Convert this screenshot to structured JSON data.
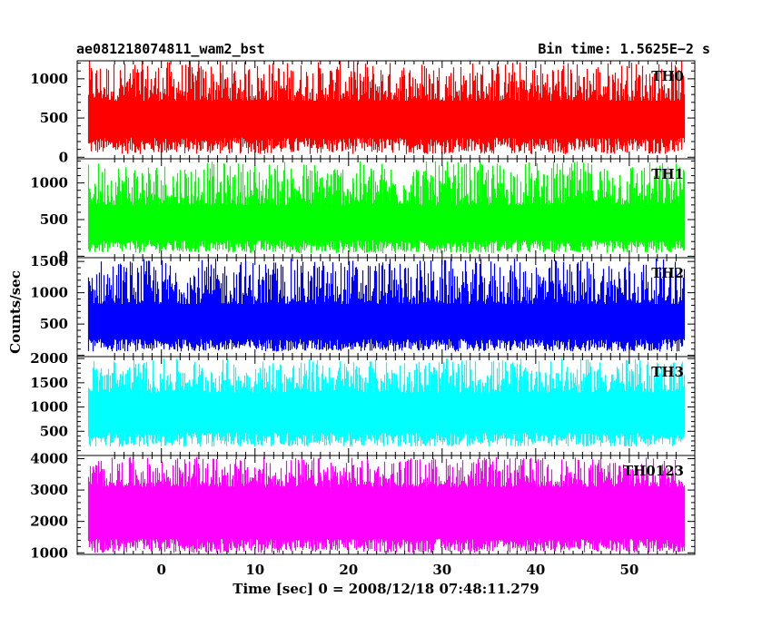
{
  "chart_data": {
    "type": "line",
    "title_left": "ae081218074811_wam2_bst",
    "title_right": "Bin time: 1.5625E−2 s",
    "ylabel": "Counts/sec",
    "xlabel": "Time [sec] 0 = 2008/12/18 07:48:11.279",
    "xlim": [
      -9,
      57
    ],
    "data_x_range": [
      -7.8,
      55.8
    ],
    "x_ticks": [
      0,
      10,
      20,
      30,
      40,
      50
    ],
    "panels": [
      {
        "name": "TH0",
        "color": "#ff0000",
        "ylim": [
          -20,
          1230
        ],
        "y_ticks": [
          0,
          500,
          1000
        ],
        "band_low": [
          40,
          250
        ],
        "band_high": [
          720,
          1230
        ],
        "mean": 500
      },
      {
        "name": "TH1",
        "color": "#00ff00",
        "ylim": [
          -20,
          1330
        ],
        "y_ticks": [
          0,
          500,
          1000
        ],
        "band_low": [
          40,
          220
        ],
        "band_high": [
          700,
          1300
        ],
        "mean": 520
      },
      {
        "name": "TH2",
        "color": "#0000ff",
        "ylim": [
          -20,
          1560
        ],
        "y_ticks": [
          500,
          1000,
          1500
        ],
        "band_low": [
          60,
          260
        ],
        "band_high": [
          820,
          1550
        ],
        "mean": 600
      },
      {
        "name": "TH3",
        "color": "#00ffff",
        "ylim": [
          0,
          2040
        ],
        "y_ticks": [
          500,
          1000,
          1500,
          2000
        ],
        "band_low": [
          180,
          480
        ],
        "band_high": [
          1300,
          2000
        ],
        "mean": 1000
      },
      {
        "name": "TH0123",
        "color": "#ff00ff",
        "ylim": [
          950,
          4100
        ],
        "y_ticks": [
          1000,
          2000,
          3000,
          4000
        ],
        "band_low": [
          1000,
          1450
        ],
        "band_high": [
          3100,
          4050
        ],
        "mean": 2300
      }
    ]
  }
}
